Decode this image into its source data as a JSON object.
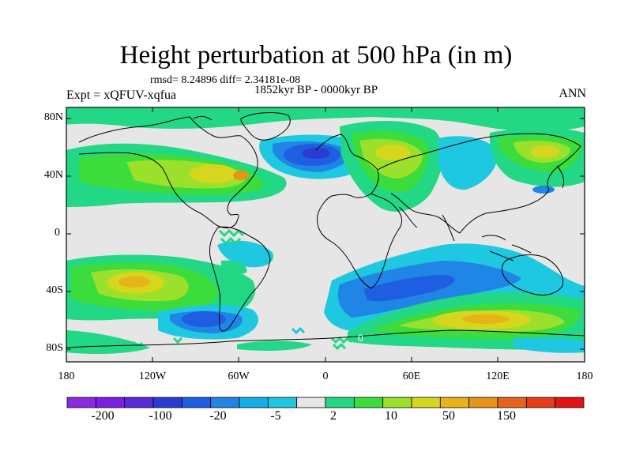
{
  "map": {
    "title": "Height perturbation at 500 hPa (in m)",
    "stats_line": "rmsd= 8.24896 diff= 2.34181e-08",
    "period_label": "1852kyr BP - 0000kyr BP",
    "experiment_label": "Expt = xQFUV-xqfua",
    "season_label": "ANN",
    "lat_ticks": [
      "80N",
      "40N",
      "0",
      "40S",
      "80S"
    ],
    "lon_ticks": [
      "180",
      "120W",
      "60W",
      "0",
      "60E",
      "120E",
      "180"
    ],
    "contour_region_labels": [
      "0"
    ]
  },
  "colorbar": {
    "colors": [
      "#8a2be2",
      "#7b1fe0",
      "#5a2ad8",
      "#2a3ccf",
      "#1f5ee0",
      "#1f86e6",
      "#14aee8",
      "#1ec8e0",
      "#e6e6e6",
      "#23d884",
      "#3ddc3d",
      "#9be02a",
      "#d6d61e",
      "#e6b41a",
      "#e6941a",
      "#e6641a",
      "#e63c1a",
      "#e01414"
    ],
    "tick_labels": [
      "-200",
      "-100",
      "-20",
      "-5",
      "2",
      "10",
      "50",
      "150"
    ]
  },
  "colors": {
    "neutral": "#e6e6e6",
    "coast": "#000000"
  }
}
